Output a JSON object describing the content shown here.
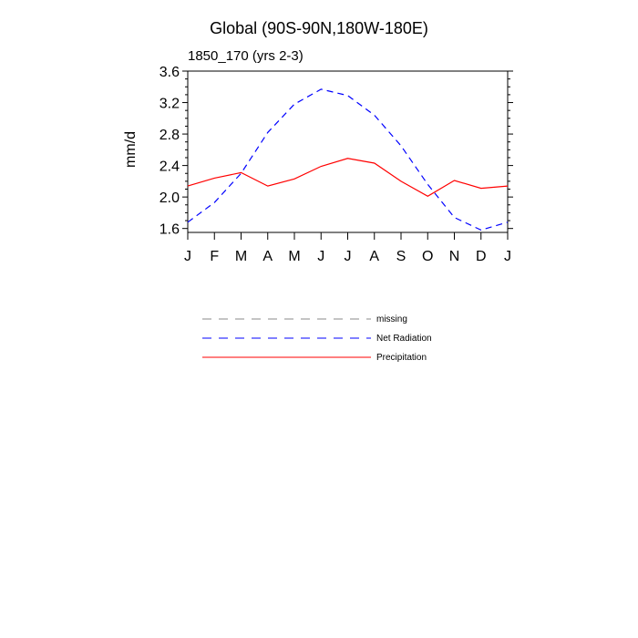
{
  "chart_data": {
    "type": "line",
    "title": "Global (90S-90N,180W-180E)",
    "subtitle": "1850_170 (yrs 2-3)",
    "xlabel": "",
    "ylabel": "mm/d",
    "ylim": [
      1.55,
      3.6
    ],
    "y_ticks": [
      "1.6",
      "2.0",
      "2.4",
      "2.8",
      "3.2",
      "3.6"
    ],
    "categories": [
      "J",
      "F",
      "M",
      "A",
      "M",
      "J",
      "J",
      "A",
      "S",
      "O",
      "N",
      "D",
      "J"
    ],
    "series": [
      {
        "name": "Net Radiation",
        "color": "#0000ff",
        "style": "dashed",
        "values": [
          1.68,
          1.93,
          2.3,
          2.82,
          3.18,
          3.37,
          3.29,
          3.04,
          2.65,
          2.16,
          1.74,
          1.58,
          1.68
        ]
      },
      {
        "name": "Precipitation",
        "color": "#ff0000",
        "style": "solid",
        "values": [
          2.14,
          2.24,
          2.31,
          2.14,
          2.23,
          2.39,
          2.49,
          2.43,
          2.2,
          2.01,
          2.21,
          2.11,
          2.14
        ]
      }
    ],
    "legend": [
      {
        "label": "missing",
        "color": "#888888",
        "style": "dashed"
      },
      {
        "label": "Net Radiation",
        "color": "#0000ff",
        "style": "dashed"
      },
      {
        "label": "Precipitation",
        "color": "#ff0000",
        "style": "solid"
      }
    ]
  }
}
